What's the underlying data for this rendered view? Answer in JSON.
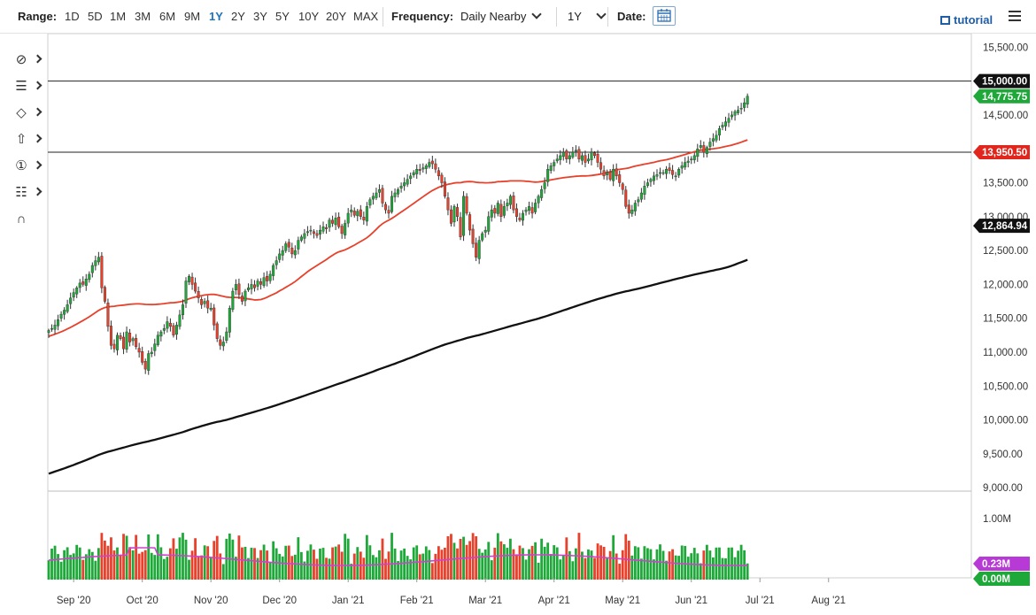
{
  "toolbar": {
    "range_label": "Range:",
    "ranges": [
      "1D",
      "5D",
      "1M",
      "3M",
      "6M",
      "9M",
      "1Y",
      "2Y",
      "3Y",
      "5Y",
      "10Y",
      "20Y",
      "MAX"
    ],
    "active_range": "1Y",
    "frequency_label": "Frequency:",
    "frequency_value": "Daily Nearby",
    "period_value": "1Y",
    "date_label": "Date:",
    "tutorial_label": "tutorial"
  },
  "drawing_tools": [
    "crosshair-icon",
    "trendline-icon",
    "shape-icon",
    "arrow-icon",
    "annotation-icon",
    "fibonacci-icon",
    "magnet-icon"
  ],
  "colors": {
    "up": "#1fa83a",
    "down": "#e8402a",
    "ma50": "#e8402a",
    "ma200": "#111111",
    "volume_ma": "#cc44cc",
    "price_tag": "#1fa83a"
  },
  "chart_data": {
    "type": "candlestick",
    "y_ticks": [
      "15,500.00",
      "15,000.00",
      "14,500.00",
      "13,500.00",
      "13,000.00",
      "12,500.00",
      "12,000.00",
      "11,500.00",
      "11,000.00",
      "10,500.00",
      "10,000.00",
      "9,500.00",
      "9,000.00"
    ],
    "y_tick_values": [
      15500,
      15000,
      14500,
      13500,
      13000,
      12500,
      12000,
      11500,
      11000,
      10500,
      10000,
      9500,
      9000
    ],
    "ylim": [
      8950,
      15700
    ],
    "x_ticks": [
      "Sep '20",
      "Oct '20",
      "Nov '20",
      "Dec '20",
      "Jan '21",
      "Feb '21",
      "Mar '21",
      "Apr '21",
      "May '21",
      "Jun '21",
      "Jul '21",
      "Aug '21"
    ],
    "x_tick_index": [
      8,
      30,
      52,
      74,
      96,
      118,
      140,
      162,
      184,
      206,
      228,
      250
    ],
    "horizontal_lines": [
      15000,
      13950
    ],
    "tags": [
      {
        "text": "15,000.00",
        "value": 15000,
        "style": "black"
      },
      {
        "text": "14,775.75",
        "value": 14775.75,
        "style": "green"
      },
      {
        "text": "13,950.50",
        "value": 13950.5,
        "style": "red"
      },
      {
        "text": "12,864.94",
        "value": 12864.94,
        "style": "black"
      }
    ],
    "closes": [
      11320,
      11350,
      11400,
      11480,
      11560,
      11620,
      11700,
      11800,
      11880,
      11950,
      12020,
      12000,
      12080,
      12150,
      12280,
      12350,
      12400,
      11950,
      11750,
      11380,
      11100,
      11050,
      11250,
      11200,
      11050,
      11300,
      11150,
      11200,
      11080,
      11000,
      10850,
      10750,
      10980,
      11000,
      11120,
      11250,
      11300,
      11350,
      11450,
      11380,
      11250,
      11400,
      11550,
      11700,
      12050,
      12120,
      12000,
      11900,
      11800,
      11700,
      11750,
      11650,
      11650,
      11400,
      11200,
      11100,
      11150,
      11300,
      11650,
      11900,
      12000,
      11850,
      11750,
      11900,
      11950,
      12000,
      11950,
      12050,
      12000,
      12100,
      12050,
      12150,
      12280,
      12350,
      12450,
      12500,
      12600,
      12550,
      12450,
      12500,
      12650,
      12700,
      12750,
      12780,
      12800,
      12750,
      12720,
      12800,
      12850,
      12820,
      12950,
      12900,
      12980,
      12850,
      12750,
      12900,
      13050,
      13100,
      13020,
      13080,
      13000,
      12950,
      13150,
      13250,
      13300,
      13350,
      13400,
      13200,
      13100,
      13050,
      13300,
      13350,
      13400,
      13450,
      13500,
      13550,
      13600,
      13650,
      13700,
      13680,
      13720,
      13750,
      13800,
      13780,
      13700,
      13600,
      13500,
      13300,
      13100,
      12900,
      13150,
      13000,
      12700,
      13300,
      13050,
      12800,
      12600,
      12400,
      12650,
      12750,
      12800,
      13000,
      13100,
      13050,
      13200,
      13000,
      13150,
      13200,
      13300,
      13100,
      13000,
      12950,
      13050,
      13100,
      13150,
      13050,
      13200,
      13300,
      13400,
      13500,
      13700,
      13750,
      13800,
      13850,
      13900,
      13950,
      13850,
      13900,
      13950,
      13980,
      13850,
      13900,
      13800,
      13850,
      13950,
      13900,
      13800,
      13700,
      13600,
      13650,
      13550,
      13700,
      13600,
      13500,
      13400,
      13150,
      13050,
      13100,
      13200,
      13250,
      13350,
      13450,
      13500,
      13550,
      13600,
      13620,
      13650,
      13650,
      13700,
      13680,
      13620,
      13600,
      13700,
      13750,
      13800,
      13820,
      13850,
      13900,
      14000,
      14050,
      13950,
      14020,
      14100,
      14150,
      14200,
      14300,
      14350,
      14400,
      14450,
      14500,
      14550,
      14570,
      14600,
      14680,
      14776
    ]
  },
  "volume_chart": {
    "y_ticks": [
      "1.00M"
    ],
    "y_tick_values": [
      1000000
    ],
    "tags": [
      {
        "text": "0.23M",
        "value": 230000,
        "style": "magenta"
      },
      {
        "text": "0.00M",
        "value": 0,
        "style": "green"
      }
    ]
  }
}
